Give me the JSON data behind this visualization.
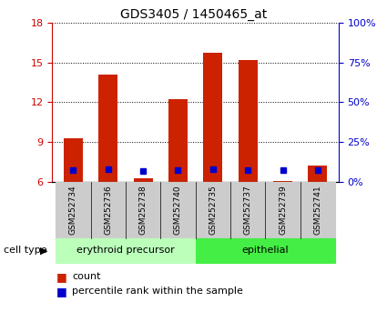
{
  "title": "GDS3405 / 1450465_at",
  "samples": [
    "GSM252734",
    "GSM252736",
    "GSM252738",
    "GSM252740",
    "GSM252735",
    "GSM252737",
    "GSM252739",
    "GSM252741"
  ],
  "count_values": [
    9.3,
    14.1,
    6.3,
    12.2,
    15.7,
    15.2,
    6.1,
    7.2
  ],
  "percentile_values": [
    7.2,
    7.9,
    7.0,
    7.7,
    8.1,
    7.7,
    7.5,
    7.7
  ],
  "ymin": 6,
  "ymax": 18,
  "yticks": [
    6,
    9,
    12,
    15,
    18
  ],
  "right_yticks": [
    0,
    25,
    50,
    75,
    100
  ],
  "right_ytick_labels": [
    "0%",
    "25%",
    "50%",
    "75%",
    "100%"
  ],
  "bar_color": "#cc2200",
  "percentile_color": "#0000cc",
  "group1_label": "erythroid precursor",
  "group2_label": "epithelial",
  "group1_color": "#bbffbb",
  "group2_color": "#44ee44",
  "group1_count": 4,
  "group2_count": 4,
  "cell_type_label": "cell type",
  "legend_count_label": "count",
  "legend_percentile_label": "percentile rank within the sample",
  "title_fontsize": 10,
  "tick_fontsize": 8,
  "bar_width": 0.55,
  "axis_color_left": "#cc0000",
  "axis_color_right": "#0000cc",
  "sample_box_color": "#cccccc",
  "border_color": "#000000"
}
